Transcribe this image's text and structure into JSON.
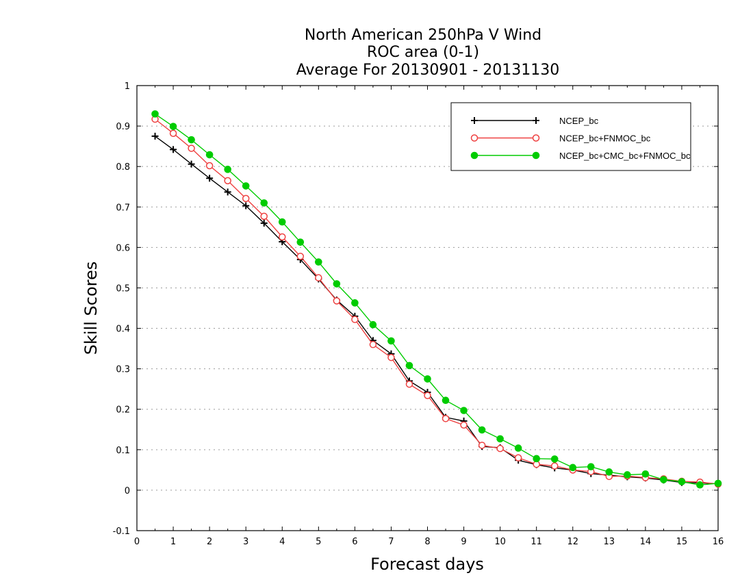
{
  "chart_data": {
    "type": "line",
    "title": [
      "North American 250hPa V Wind",
      "ROC area (0-1)",
      "Average For 20130901 - 20131130"
    ],
    "xlabel": "Forecast days",
    "ylabel": "Skill Scores",
    "xlim": [
      0,
      16
    ],
    "ylim": [
      -0.1,
      1
    ],
    "xticks": [
      0,
      1,
      2,
      3,
      4,
      5,
      6,
      7,
      8,
      9,
      10,
      11,
      12,
      13,
      14,
      15,
      16
    ],
    "yticks": [
      -0.1,
      0,
      0.1,
      0.2,
      0.3,
      0.4,
      0.5,
      0.6,
      0.7,
      0.8,
      0.9,
      1
    ],
    "ytick_labels": [
      "-0.1",
      "0",
      "0.1",
      "0.2",
      "0.3",
      "0.4",
      "0.5",
      "0.6",
      "0.7",
      "0.8",
      "0.9",
      "1"
    ],
    "grid": "horizontal dotted",
    "legend_position": "top-right",
    "x": [
      0.5,
      1,
      1.5,
      2,
      2.5,
      3,
      3.5,
      4,
      4.5,
      5,
      5.5,
      6,
      6.5,
      7,
      7.5,
      8,
      8.5,
      9,
      9.5,
      10,
      10.5,
      11,
      11.5,
      12,
      12.5,
      13,
      13.5,
      14,
      14.5,
      15,
      15.5,
      16
    ],
    "series": [
      {
        "name": "NCEP_bc",
        "color": "#000000",
        "marker": "plus",
        "values": [
          0.875,
          0.842,
          0.806,
          0.771,
          0.737,
          0.703,
          0.66,
          0.614,
          0.57,
          0.522,
          0.47,
          0.43,
          0.37,
          0.337,
          0.27,
          0.242,
          0.18,
          0.171,
          0.108,
          0.105,
          0.074,
          0.063,
          0.055,
          0.05,
          0.041,
          0.037,
          0.033,
          0.03,
          0.025,
          0.019,
          0.018,
          0.016
        ]
      },
      {
        "name": "NCEP_bc+FNMOC_bc",
        "color": "#ee4040",
        "marker": "open-circle",
        "values": [
          0.917,
          0.882,
          0.845,
          0.802,
          0.765,
          0.721,
          0.677,
          0.626,
          0.578,
          0.525,
          0.468,
          0.422,
          0.36,
          0.328,
          0.262,
          0.234,
          0.177,
          0.161,
          0.111,
          0.103,
          0.08,
          0.064,
          0.06,
          0.05,
          0.046,
          0.034,
          0.035,
          0.031,
          0.028,
          0.022,
          0.02,
          0.015
        ]
      },
      {
        "name": "NCEP_bc+CMC_bc+FNMOC_bc",
        "color": "#00cc00",
        "marker": "filled-circle",
        "values": [
          0.93,
          0.899,
          0.866,
          0.829,
          0.793,
          0.752,
          0.71,
          0.663,
          0.613,
          0.564,
          0.51,
          0.463,
          0.409,
          0.369,
          0.308,
          0.275,
          0.222,
          0.197,
          0.149,
          0.127,
          0.104,
          0.078,
          0.077,
          0.056,
          0.058,
          0.045,
          0.038,
          0.04,
          0.026,
          0.021,
          0.013,
          0.017
        ]
      }
    ]
  }
}
